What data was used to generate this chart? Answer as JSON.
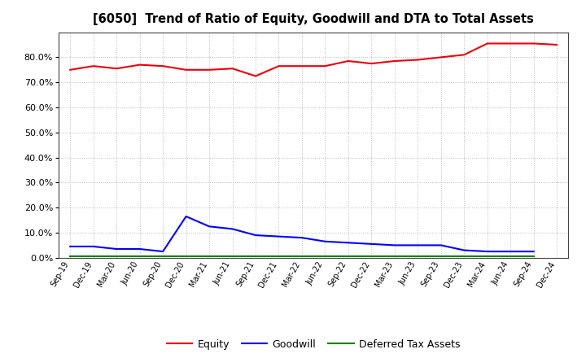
{
  "title": "[6050]  Trend of Ratio of Equity, Goodwill and DTA to Total Assets",
  "x_labels": [
    "Sep-19",
    "Dec-19",
    "Mar-20",
    "Jun-20",
    "Sep-20",
    "Dec-20",
    "Mar-21",
    "Jun-21",
    "Sep-21",
    "Dec-21",
    "Mar-22",
    "Jun-22",
    "Sep-22",
    "Dec-22",
    "Mar-23",
    "Jun-23",
    "Sep-23",
    "Dec-23",
    "Mar-24",
    "Jun-24",
    "Sep-24",
    "Dec-24"
  ],
  "equity": [
    75.0,
    76.5,
    75.5,
    77.0,
    76.5,
    75.0,
    75.0,
    75.5,
    72.5,
    76.5,
    76.5,
    76.5,
    78.5,
    77.5,
    78.5,
    79.0,
    80.0,
    81.0,
    85.5,
    85.5,
    85.5,
    85.0
  ],
  "goodwill": [
    4.5,
    4.5,
    3.5,
    3.5,
    2.5,
    16.5,
    12.5,
    11.5,
    9.0,
    8.5,
    8.0,
    6.5,
    6.0,
    5.5,
    5.0,
    5.0,
    5.0,
    3.0,
    2.5,
    2.5,
    2.5,
    null
  ],
  "dta": [
    0.5,
    0.5,
    0.5,
    0.5,
    0.5,
    0.5,
    0.5,
    0.5,
    0.5,
    0.5,
    0.5,
    0.5,
    0.5,
    0.5,
    0.5,
    0.5,
    0.5,
    0.5,
    0.5,
    0.5,
    0.5,
    null
  ],
  "equity_color": "#e8000d",
  "goodwill_color": "#0000ff",
  "dta_color": "#008000",
  "legend_labels": [
    "Equity",
    "Goodwill",
    "Deferred Tax Assets"
  ],
  "ylim_max": 90,
  "yticks": [
    0,
    10,
    20,
    30,
    40,
    50,
    60,
    70,
    80
  ],
  "background_color": "#ffffff",
  "grid_color": "#b0b0b0"
}
